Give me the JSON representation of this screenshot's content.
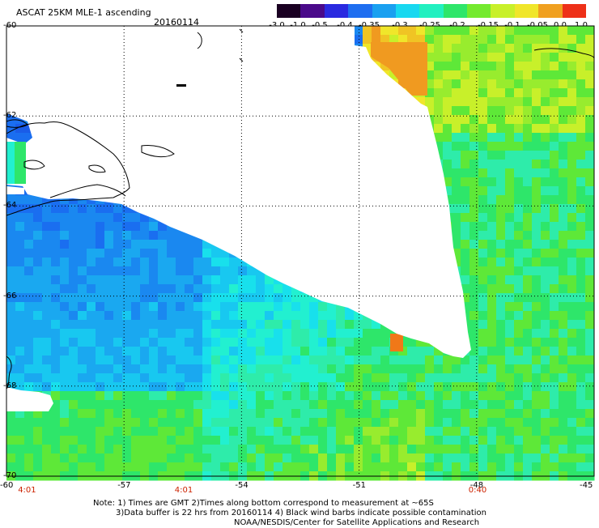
{
  "header": {
    "title": "ASCAT 25KM MLE-1 ascending",
    "date": "20160114"
  },
  "colorbar": {
    "labels": [
      "-3.0",
      "-1.0",
      "-0.5",
      "-0.4",
      "-0.35",
      "-0.3",
      "-0.25",
      "-0.2",
      "-0.15",
      "-0.1",
      "-0.05",
      "0.0",
      "1.0"
    ],
    "colors": [
      "#1a0022",
      "#4a0a8a",
      "#2a2ae0",
      "#1f6ef0",
      "#1aa0f0",
      "#18d8f0",
      "#22f0c0",
      "#2ee66a",
      "#74ea2e",
      "#c8f02a",
      "#f0e62a",
      "#f0a020",
      "#ee3018"
    ]
  },
  "map": {
    "lat_labels": [
      "-60",
      "-62",
      "-64",
      "-66",
      "-68",
      "-70"
    ],
    "lon_labels": [
      "-60",
      "-57",
      "-54",
      "-51",
      "-48",
      "-45"
    ],
    "time_labels": [
      {
        "text": "4:01",
        "lon": -59.5
      },
      {
        "text": "4:01",
        "lon": -55.5
      },
      {
        "text": "0:40",
        "lon": -48.0
      }
    ]
  },
  "footer": {
    "note_line1": "Note: 1) Times are GMT 2)Times along bottom correspond to measurement at ~65S",
    "note_line2": "3)Data buffer is 22 hrs from 20160114 4) Black wind barbs indicate possible contamination",
    "credit": "NOAA/NESDIS/Center for Satellite Applications and Research"
  }
}
